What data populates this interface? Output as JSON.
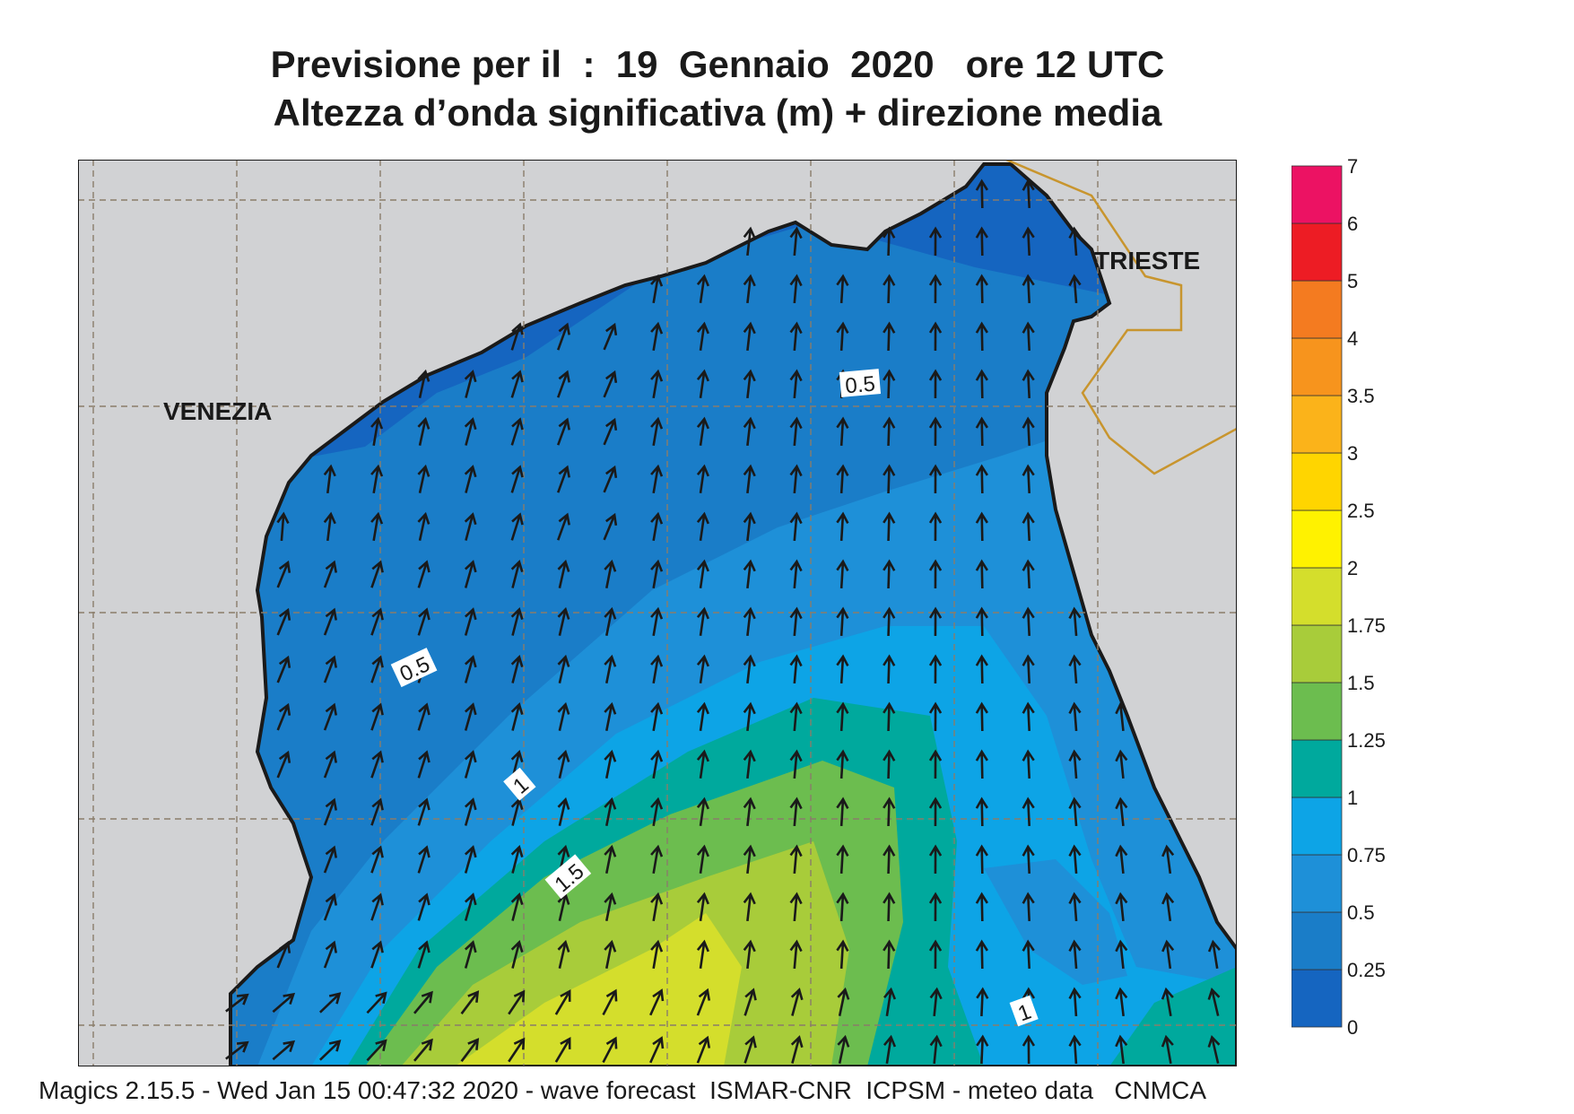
{
  "title": {
    "line1": "Previsione per il  :  19  Gennaio  2020   ore 12 UTC",
    "line2": "Altezza d’onda significativa (m) + direzione media"
  },
  "cities": {
    "venezia": "VENEZIA",
    "trieste": "TRIESTE"
  },
  "contour_labels": [
    "0.5",
    "0.5",
    "1",
    "1.5",
    "1"
  ],
  "legend": {
    "colors": [
      "#1565c0",
      "#1a7dc8",
      "#1e90d8",
      "#0da4e6",
      "#00a99d",
      "#6cbd4f",
      "#a8cc3a",
      "#d4de2c",
      "#fff200",
      "#ffd500",
      "#fbb31a",
      "#f7941d",
      "#f47b20",
      "#ed1c24",
      "#ec1263"
    ],
    "labels": [
      "0",
      "0.25",
      "0.5",
      "0.75",
      "1",
      "1.25",
      "1.5",
      "1.75",
      "2",
      "2.5",
      "3",
      "3.5",
      "4",
      "5",
      "6",
      "7"
    ]
  },
  "footer": "Magics 2.15.5 - Wed Jan 15 00:47:32 2020 - wave forecast  ISMAR-CNR  ICPSM - meteo data   CNMCA"
}
